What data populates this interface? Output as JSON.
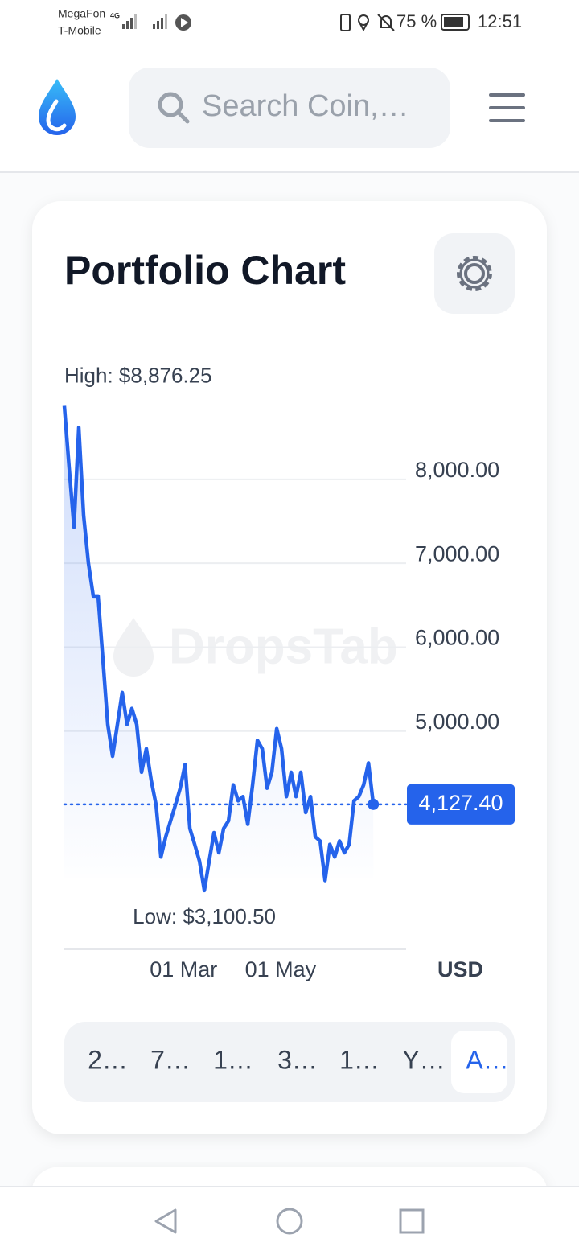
{
  "status_bar": {
    "carrier_1": "MegaFon",
    "network": "4G",
    "carrier_2": "T-Mobile",
    "battery": "75 %",
    "time": "12:51"
  },
  "header": {
    "search_placeholder": "Search Coin,…"
  },
  "card": {
    "title": "Portfolio Chart",
    "currency": "USD",
    "ranges": [
      "2…",
      "7…",
      "1…",
      "3…",
      "1…",
      "Y…",
      "A…"
    ]
  },
  "chart_data": {
    "type": "line",
    "watermark": "DropsTab",
    "color": "#2563eb",
    "high": {
      "value": 8876.25,
      "label": "High: $8,876.25"
    },
    "low": {
      "value": 3100.5,
      "label": "Low: $3,100.50"
    },
    "current": {
      "value": 4127.4,
      "label": "4,127.40"
    },
    "values": [
      8876.25,
      8140,
      7430,
      8620,
      7570,
      7000,
      6610,
      6610,
      5850,
      5080,
      4700,
      5080,
      5460,
      5080,
      5270,
      5080,
      4510,
      4790,
      4410,
      4120,
      3500,
      3740,
      3930,
      4120,
      4320,
      4600,
      3840,
      3650,
      3450,
      3100.5,
      3450,
      3790,
      3550,
      3840,
      3930,
      4360,
      4170,
      4220,
      3890,
      4360,
      4890,
      4790,
      4320,
      4510,
      5030,
      4790,
      4220,
      4510,
      4220,
      4510,
      4030,
      4220,
      3740,
      3690,
      3220,
      3650,
      3500,
      3690,
      3550,
      3650,
      4170,
      4220,
      4360,
      4620,
      4127.4
    ],
    "xlim": [
      0,
      70.8
    ],
    "xticks": [
      {
        "value": 24.7,
        "label": "01 Mar"
      },
      {
        "value": 44.8,
        "label": "01 May"
      }
    ],
    "ylim": [
      2400,
      8900
    ],
    "yticks": [
      {
        "value": 5000,
        "label": "5,000.00"
      },
      {
        "value": 6000,
        "label": "6,000.00"
      },
      {
        "value": 7000,
        "label": "7,000.00"
      },
      {
        "value": 8000,
        "label": "8,000.00"
      }
    ],
    "grid": true
  }
}
